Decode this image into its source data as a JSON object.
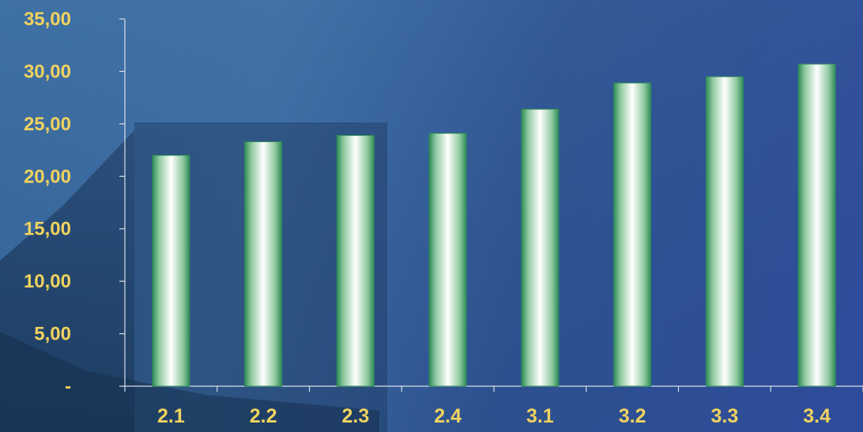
{
  "chart_data": {
    "type": "bar",
    "categories": [
      "2.1",
      "2.2",
      "2.3",
      "2.4",
      "3.1",
      "3.2",
      "3.3",
      "3.4"
    ],
    "values": [
      22.0,
      23.3,
      23.9,
      24.1,
      26.4,
      28.9,
      29.5,
      30.7
    ],
    "ylim": [
      0,
      35
    ],
    "yticks": [
      0,
      5,
      10,
      15,
      20,
      25,
      30,
      35
    ],
    "ytick_labels": [
      "-",
      "5,00",
      "10,00",
      "15,00",
      "20,00",
      "25,00",
      "30,00",
      "35,00"
    ],
    "title": "",
    "xlabel": "",
    "ylabel": "",
    "grid": false,
    "legend": "none",
    "colors": {
      "tick_label": "#f0d25e",
      "axis": "#d8dde8",
      "bar_edge": "#2e8b57",
      "bar_highlight": "#ffffff"
    }
  }
}
